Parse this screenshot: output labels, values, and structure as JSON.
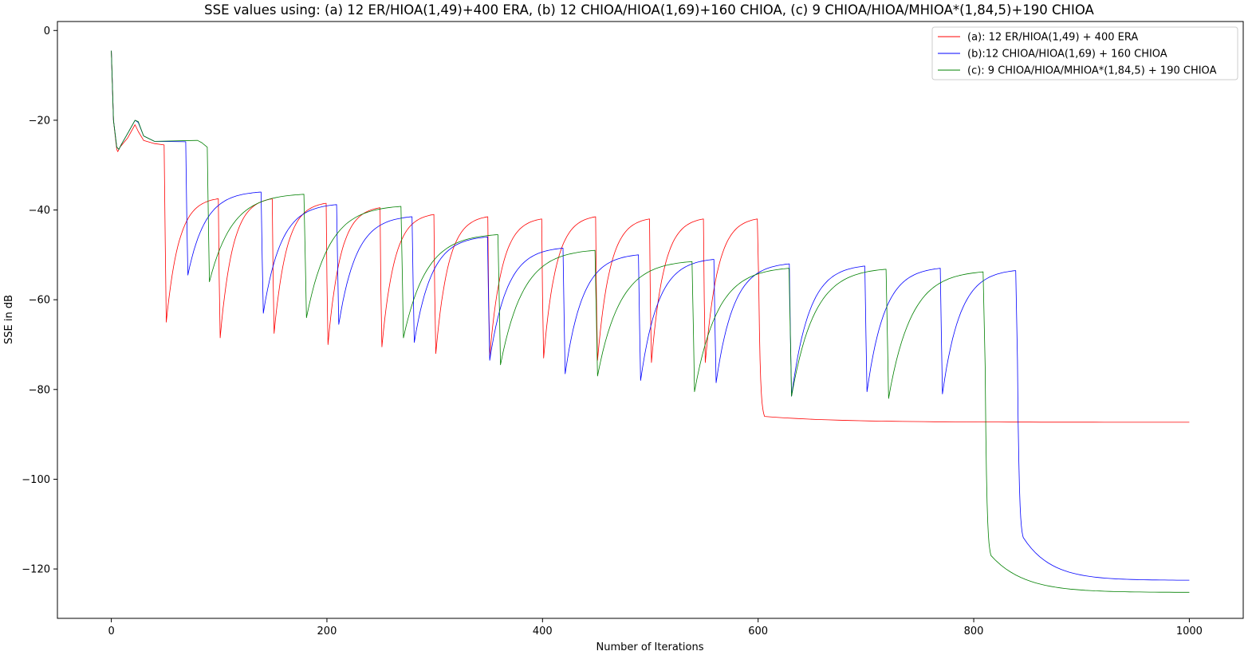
{
  "chart_data": {
    "type": "line",
    "title": "SSE values using: (a) 12 ER/HIOA(1,49)+400 ERA, (b) 12 CHIOA/HIOA(1,69)+160 CHIOA, (c) 9 CHIOA/HIOA/MHIOA*(1,84,5)+190 CHIOA",
    "xlabel": "Number of Iterations",
    "ylabel": "SSE in dB",
    "xlim": [
      -50,
      1050
    ],
    "ylim": [
      -131,
      2
    ],
    "xticks": [
      0,
      200,
      400,
      600,
      800,
      1000
    ],
    "yticks": [
      0,
      -20,
      -40,
      -60,
      -80,
      -100,
      -120
    ],
    "grid": false,
    "legend_position": "top-right",
    "series": [
      {
        "name": "(a): 12 ER/HIOA(1,49) + 400 ERA",
        "color": "#ff0000",
        "start": [
          [
            0,
            -4.5
          ],
          [
            2,
            -20
          ],
          [
            5,
            -26.5
          ],
          [
            6,
            -27
          ],
          [
            8,
            -26
          ],
          [
            15,
            -24
          ],
          [
            22,
            -21
          ],
          [
            25,
            -22.5
          ],
          [
            30,
            -24.5
          ],
          [
            40,
            -25.2
          ],
          [
            49,
            -25.5
          ]
        ],
        "cycles": [
          {
            "x": 50,
            "min": -65,
            "max": -37.5,
            "end": 100
          },
          {
            "x": 100,
            "min": -68.5,
            "max": -37.5,
            "end": 150
          },
          {
            "x": 150,
            "min": -67.5,
            "max": -38.5,
            "end": 200
          },
          {
            "x": 200,
            "min": -70,
            "max": -39.5,
            "end": 250
          },
          {
            "x": 250,
            "min": -70.5,
            "max": -41,
            "end": 300
          },
          {
            "x": 300,
            "min": -72,
            "max": -41.5,
            "end": 350
          },
          {
            "x": 350,
            "min": -72.5,
            "max": -42,
            "end": 400
          },
          {
            "x": 400,
            "min": -73,
            "max": -41.5,
            "end": 450
          },
          {
            "x": 450,
            "min": -73.5,
            "max": -42,
            "end": 500
          },
          {
            "x": 500,
            "min": -74,
            "max": -42,
            "end": 550
          },
          {
            "x": 550,
            "min": -74,
            "max": -42,
            "end": 600
          }
        ],
        "final": {
          "x": 600,
          "level": -86,
          "end_x": 1000,
          "end_y": -87.3
        }
      },
      {
        "name": "(b):12 CHIOA/HIOA(1,69) + 160 CHIOA",
        "color": "#0000ff",
        "start": [
          [
            0,
            -4.5
          ],
          [
            2,
            -20
          ],
          [
            5,
            -26
          ],
          [
            7,
            -26.5
          ],
          [
            9,
            -25.5
          ],
          [
            15,
            -23
          ],
          [
            22,
            -20
          ],
          [
            25,
            -20.5
          ],
          [
            30,
            -23.5
          ],
          [
            40,
            -24.7
          ],
          [
            69,
            -24.8
          ]
        ],
        "cycles": [
          {
            "x": 70,
            "min": -54.5,
            "max": -36,
            "end": 140
          },
          {
            "x": 140,
            "min": -63,
            "max": -38.8,
            "end": 210
          },
          {
            "x": 210,
            "min": -65.5,
            "max": -41.5,
            "end": 280
          },
          {
            "x": 280,
            "min": -69.5,
            "max": -46,
            "end": 350
          },
          {
            "x": 350,
            "min": -73.5,
            "max": -48.5,
            "end": 420
          },
          {
            "x": 420,
            "min": -76.5,
            "max": -50,
            "end": 490
          },
          {
            "x": 490,
            "min": -78,
            "max": -51,
            "end": 560
          },
          {
            "x": 560,
            "min": -78.5,
            "max": -52,
            "end": 630
          },
          {
            "x": 630,
            "min": -81.5,
            "max": -52.5,
            "end": 700
          },
          {
            "x": 700,
            "min": -80.5,
            "max": -53,
            "end": 770
          },
          {
            "x": 770,
            "min": -81,
            "max": -53.5,
            "end": 840
          }
        ],
        "final": {
          "x": 840,
          "level": -113,
          "end_x": 1000,
          "end_y": -122.5
        }
      },
      {
        "name": "(c): 9 CHIOA/HIOA/MHIOA*(1,84,5) + 190 CHIOA",
        "color": "#008000",
        "start": [
          [
            0,
            -4.5
          ],
          [
            2,
            -20
          ],
          [
            5,
            -26
          ],
          [
            7,
            -26.5
          ],
          [
            9,
            -25.5
          ],
          [
            15,
            -23
          ],
          [
            22,
            -20
          ],
          [
            25,
            -20.3
          ],
          [
            30,
            -23.5
          ],
          [
            40,
            -24.7
          ],
          [
            80,
            -24.5
          ],
          [
            84,
            -25
          ],
          [
            89,
            -26
          ]
        ],
        "cycles": [
          {
            "x": 90,
            "min": -56,
            "max": -36.5,
            "end": 180
          },
          {
            "x": 180,
            "min": -64,
            "max": -39.2,
            "end": 270
          },
          {
            "x": 270,
            "min": -68.5,
            "max": -45.5,
            "end": 360
          },
          {
            "x": 360,
            "min": -74.5,
            "max": -49,
            "end": 450
          },
          {
            "x": 450,
            "min": -77,
            "max": -51.5,
            "end": 540
          },
          {
            "x": 540,
            "min": -80.5,
            "max": -53,
            "end": 630
          },
          {
            "x": 630,
            "min": -81.5,
            "max": -53.2,
            "end": 720
          },
          {
            "x": 720,
            "min": -82,
            "max": -53.8,
            "end": 810
          }
        ],
        "final": {
          "x": 810,
          "level": -117,
          "end_x": 1000,
          "end_y": -125.2
        }
      }
    ]
  }
}
